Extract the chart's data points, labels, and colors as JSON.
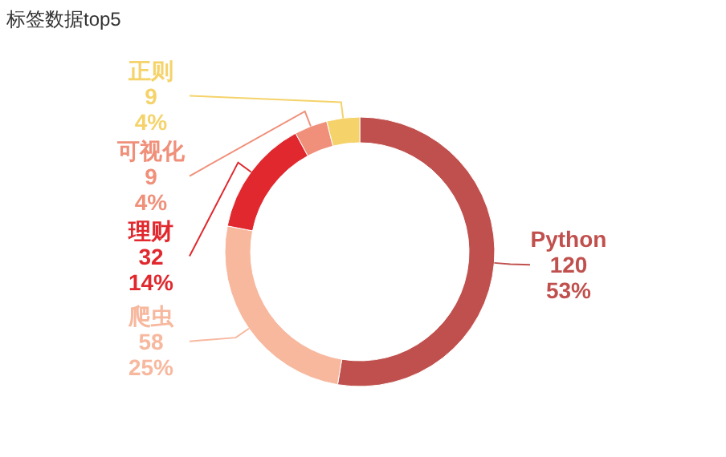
{
  "chart_data": {
    "type": "donut",
    "title": "标签数据top5",
    "categories": [
      "Python",
      "爬虫",
      "理财",
      "可视化",
      "正则"
    ],
    "values": [
      120,
      58,
      32,
      9,
      9
    ],
    "value_labels": [
      "120\n53%",
      "58\n25%",
      "32\n14%",
      "9\n4%",
      "9\n4%"
    ],
    "colors": [
      "#c0504d",
      "#f7b89e",
      "#e0282e",
      "#f0907a",
      "#f5d36a"
    ]
  }
}
